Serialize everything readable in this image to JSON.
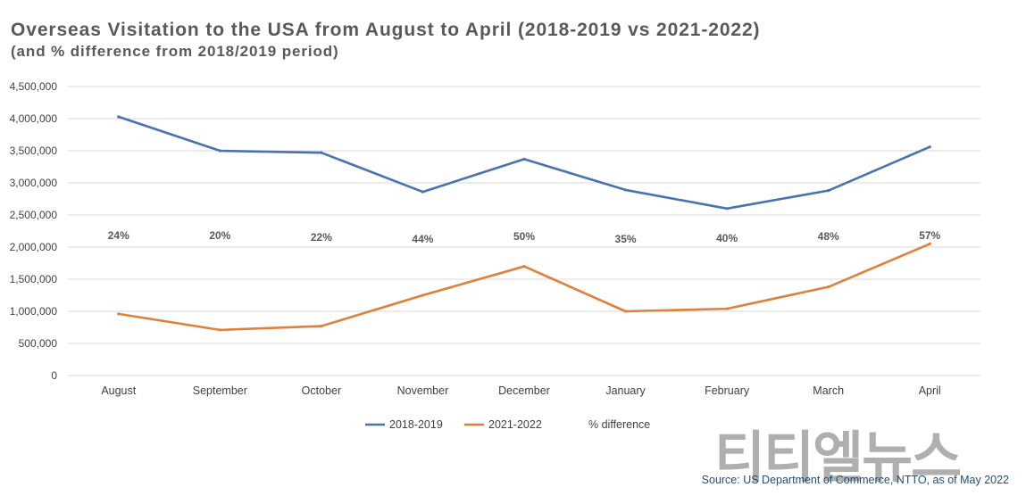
{
  "chart_data": {
    "type": "line",
    "title": "Overseas Visitation to the USA from August to April (2018-2019 vs 2021-2022)",
    "subtitle": "(and % difference from 2018/2019 period)",
    "categories": [
      "August",
      "September",
      "October",
      "November",
      "December",
      "January",
      "February",
      "March",
      "April"
    ],
    "yticks": [
      "0",
      "500,000",
      "1,000,000",
      "1,500,000",
      "2,000,000",
      "2,500,000",
      "3,000,000",
      "3,500,000",
      "4,000,000",
      "4,500,000"
    ],
    "ylim": [
      0,
      4500000
    ],
    "series": [
      {
        "name": "2018-2019",
        "color": "#4a72b0",
        "values": [
          4030000,
          3500000,
          3470000,
          2860000,
          3370000,
          2890000,
          2600000,
          2880000,
          3560000
        ]
      },
      {
        "name": "2021-2022",
        "color": "#e0803a",
        "values": [
          960000,
          710000,
          770000,
          1250000,
          1700000,
          1000000,
          1040000,
          1380000,
          2050000
        ]
      }
    ],
    "pct_difference": {
      "name": "% difference",
      "labels": [
        "24%",
        "20%",
        "22%",
        "44%",
        "50%",
        "35%",
        "40%",
        "48%",
        "57%"
      ]
    },
    "grid": true,
    "legend_position": "bottom"
  },
  "source": "Source: US Department of Commerce, NTTO, as of May 2022",
  "watermark": "티티엘뉴스"
}
